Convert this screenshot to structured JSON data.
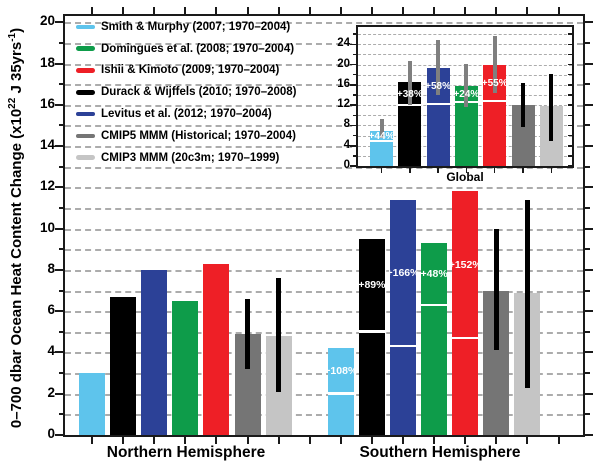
{
  "figure": {
    "ylabel_parts": {
      "prefix": "0–700 dbar Ocean Heat Content Change (x10",
      "sup1": "22",
      "mid": " J 35yrs",
      "sup2": "-1",
      "suffix": ")"
    }
  },
  "legend": {
    "items": [
      {
        "label": "Smith & Murphy (2007; 1970–2004)",
        "color": "#5EC4EC"
      },
      {
        "label": "Domingues et al. (2008; 1970–2004)",
        "color": "#0E9C4A"
      },
      {
        "label": "Ishii & Kimoto (2009; 1970–2004)",
        "color": "#EE1F26"
      },
      {
        "label": "Durack & Wijffels (2010; 1970–2008)",
        "color": "#000000"
      },
      {
        "label": "Levitus et al. (2012; 1970–2004)",
        "color": "#2C4197"
      },
      {
        "label": "CMIP5 MMM (Historical; 1970–2004)",
        "color": "#757575"
      },
      {
        "label": "CMIP3 MMM (20c3m; 1970–1999)",
        "color": "#C5C5C5"
      }
    ]
  },
  "chart_data": [
    {
      "type": "bar",
      "name": "main",
      "ylabel": "0–700 dbar Ocean Heat Content Change (x10^22 J 35yrs^-1)",
      "ylim": [
        0,
        20.3
      ],
      "yticks": [
        0,
        2,
        4,
        6,
        8,
        10,
        12,
        14,
        16,
        18,
        20
      ],
      "grid": {
        "horizontal": true,
        "style": "dashed",
        "interval": 1
      },
      "legend_position": "top-left",
      "groups": [
        {
          "label": "Northern Hemisphere",
          "bars": [
            {
              "series": "Smith & Murphy (2007; 1970–2004)",
              "color": "#5EC4EC",
              "value": 3.0
            },
            {
              "series": "Durack & Wijffels (2010; 1970–2008)",
              "color": "#000000",
              "value": 6.7
            },
            {
              "series": "Levitus et al. (2012; 1970–2004)",
              "color": "#2C4197",
              "value": 8.0
            },
            {
              "series": "Domingues et al. (2008; 1970–2004)",
              "color": "#0E9C4A",
              "value": 6.5
            },
            {
              "series": "Ishii & Kimoto (2009; 1970–2004)",
              "color": "#EE1F26",
              "value": 8.3
            },
            {
              "series": "CMIP5 MMM (Historical; 1970–2004)",
              "color": "#757575",
              "value": 4.9,
              "err_lo": 3.2,
              "err_hi": 6.6,
              "err_color": "#000000"
            },
            {
              "series": "CMIP3 MMM (20c3m; 1970–1999)",
              "color": "#C5C5C5",
              "value": 4.8,
              "err_lo": 2.1,
              "err_hi": 7.6,
              "err_color": "#000000"
            }
          ]
        },
        {
          "label": "Southern Hemisphere",
          "bars": [
            {
              "series": "Smith & Murphy (2007; 1970–2004)",
              "color": "#5EC4EC",
              "value": 4.2,
              "ref_line": 2.0,
              "pct_label": "+108%"
            },
            {
              "series": "Durack & Wijffels (2010; 1970–2008)",
              "color": "#000000",
              "value": 9.5,
              "ref_line": 5.0,
              "pct_label": "+89%"
            },
            {
              "series": "Levitus et al. (2012; 1970–2004)",
              "color": "#2C4197",
              "value": 11.4,
              "ref_line": 4.3,
              "pct_label": "+166%"
            },
            {
              "series": "Domingues et al. (2008; 1970–2004)",
              "color": "#0E9C4A",
              "value": 9.3,
              "ref_line": 6.3,
              "pct_label": "+48%"
            },
            {
              "series": "Ishii & Kimoto (2009; 1970–2004)",
              "color": "#EE1F26",
              "value": 11.8,
              "ref_line": 4.7,
              "pct_label": "+152%"
            },
            {
              "series": "CMIP5 MMM (Historical; 1970–2004)",
              "color": "#757575",
              "value": 7.0,
              "err_lo": 4.1,
              "err_hi": 10.0,
              "err_color": "#000000"
            },
            {
              "series": "CMIP3 MMM (20c3m; 1970–1999)",
              "color": "#C5C5C5",
              "value": 6.9,
              "err_lo": 2.3,
              "err_hi": 11.4,
              "err_color": "#000000"
            }
          ]
        }
      ]
    },
    {
      "type": "bar",
      "name": "inset-global",
      "xlabel": "Global",
      "ylim": [
        0,
        27.4
      ],
      "yticks": [
        0,
        4,
        8,
        12,
        16,
        20,
        24
      ],
      "grid": {
        "horizontal": true,
        "style": "dashed",
        "interval": 2
      },
      "bars": [
        {
          "series": "Smith & Murphy (2007; 1970–2004)",
          "color": "#5EC4EC",
          "value": 7.0,
          "ref_line": 4.9,
          "pct_label": "+44%",
          "err_lo": 5.5,
          "err_hi": 9.2,
          "err_color": "#7F7F7F"
        },
        {
          "series": "Durack & Wijffels (2010; 1970–2008)",
          "color": "#000000",
          "value": 16.5,
          "ref_line": 12.0,
          "pct_label": "+38%",
          "err_lo": 12.1,
          "err_hi": 20.7,
          "err_color": "#7F7F7F"
        },
        {
          "series": "Levitus et al. (2012; 1970–2004)",
          "color": "#2C4197",
          "value": 19.4,
          "ref_line": 12.3,
          "pct_label": "+58%",
          "err_lo": 14.0,
          "err_hi": 24.8,
          "err_color": "#7F7F7F"
        },
        {
          "series": "Domingues et al. (2008; 1970–2004)",
          "color": "#0E9C4A",
          "value": 15.8,
          "ref_line": 12.7,
          "pct_label": "+24%",
          "err_lo": 11.6,
          "err_hi": 20.2,
          "err_color": "#7F7F7F"
        },
        {
          "series": "Ishii & Kimoto (2009; 1970–2004)",
          "color": "#EE1F26",
          "value": 20.0,
          "ref_line": 12.9,
          "pct_label": "+55%",
          "err_lo": 14.4,
          "err_hi": 25.7,
          "err_color": "#7F7F7F"
        },
        {
          "series": "CMIP5 MMM (Historical; 1970–2004)",
          "color": "#757575",
          "value": 12.1,
          "err_lo": 7.7,
          "err_hi": 16.3,
          "err_color": "#000000"
        },
        {
          "series": "CMIP3 MMM (20c3m; 1970–1999)",
          "color": "#C5C5C5",
          "value": 11.9,
          "err_lo": 5.0,
          "err_hi": 18.2,
          "err_color": "#000000"
        }
      ]
    }
  ]
}
